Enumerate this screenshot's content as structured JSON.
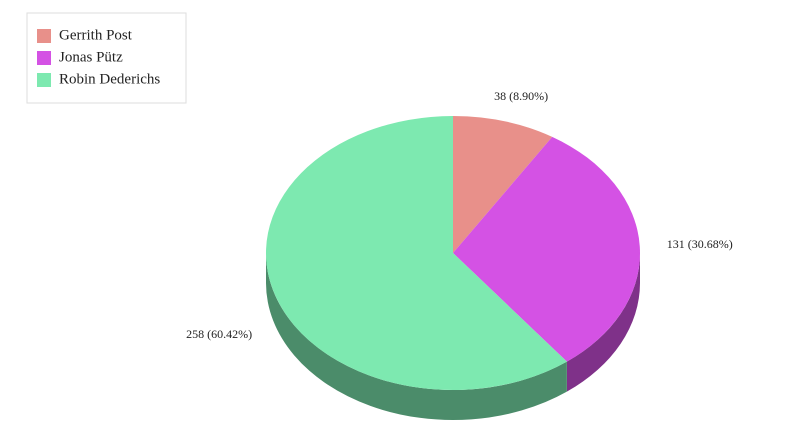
{
  "chart_data": {
    "type": "pie3d",
    "categories": [
      "Gerrith Post",
      "Jonas Pütz",
      "Robin Dederichs"
    ],
    "values": [
      38,
      131,
      258
    ],
    "value_labels": [
      "38 (8.90%)",
      "131 (30.68%)",
      "258 (60.42%)"
    ],
    "colors": [
      "#e8908a",
      "#d452e4",
      "#7de9b0"
    ],
    "legend": "top-left"
  }
}
